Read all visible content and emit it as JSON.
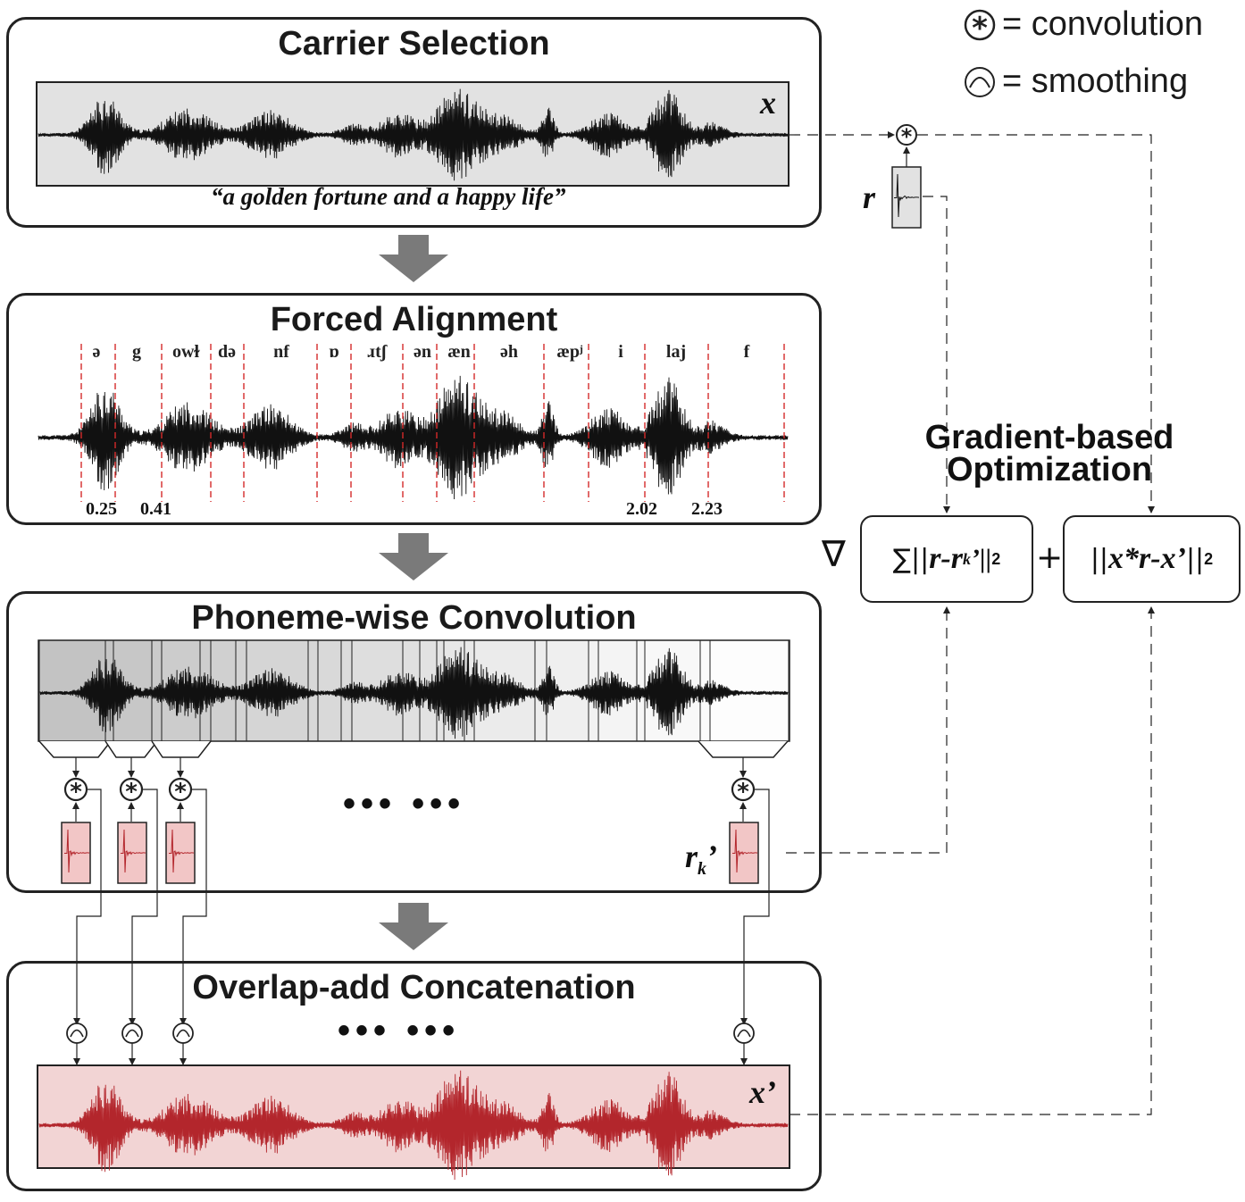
{
  "legend": {
    "convolution": "= convolution",
    "smoothing": "= smoothing"
  },
  "carrier_selection": {
    "title": "Carrier Selection",
    "signal_label": "x",
    "transcript": "“a golden fortune and a happy life”"
  },
  "forced_alignment": {
    "title": "Forced Alignment",
    "phonemes": [
      "ə",
      "g",
      "owɫ",
      "də",
      "nf",
      "ɒ",
      "ɹtʃ",
      "ən",
      "æn",
      "əh",
      "æpʲ",
      "i",
      "laj",
      "f"
    ],
    "time_marks": [
      "0.25",
      "0.41",
      "2.02",
      "2.23"
    ]
  },
  "phoneme_convolution": {
    "title": "Phoneme-wise Convolution",
    "ellipsis": "••• •••",
    "rir_label": "r",
    "rir_sub": "k",
    "rir_prime": "’"
  },
  "overlap_add": {
    "title": "Overlap-add Concatenation",
    "ellipsis": "••• •••",
    "signal_label": "x’"
  },
  "rir": {
    "label": "r"
  },
  "optimization": {
    "title_line1": "Gradient-based",
    "title_line2": "Optimization",
    "nabla": "∇",
    "plus": "+",
    "term1_sum": "∑||",
    "term1_r": "r-r",
    "term1_sub": "k",
    "term1_rest": "’||",
    "term1_norm": "2",
    "term2_open": "||",
    "term2_expr": "x*r-x’",
    "term2_close": "||",
    "term2_norm": "2"
  },
  "colors": {
    "panel_border": "#222222",
    "waveform_bg": "#e2e2e2",
    "red_bg": "#f2d4d4",
    "red_wave": "#b3262c",
    "arrow_gray": "#7a7a7a",
    "align_line": "#d42a2a"
  }
}
